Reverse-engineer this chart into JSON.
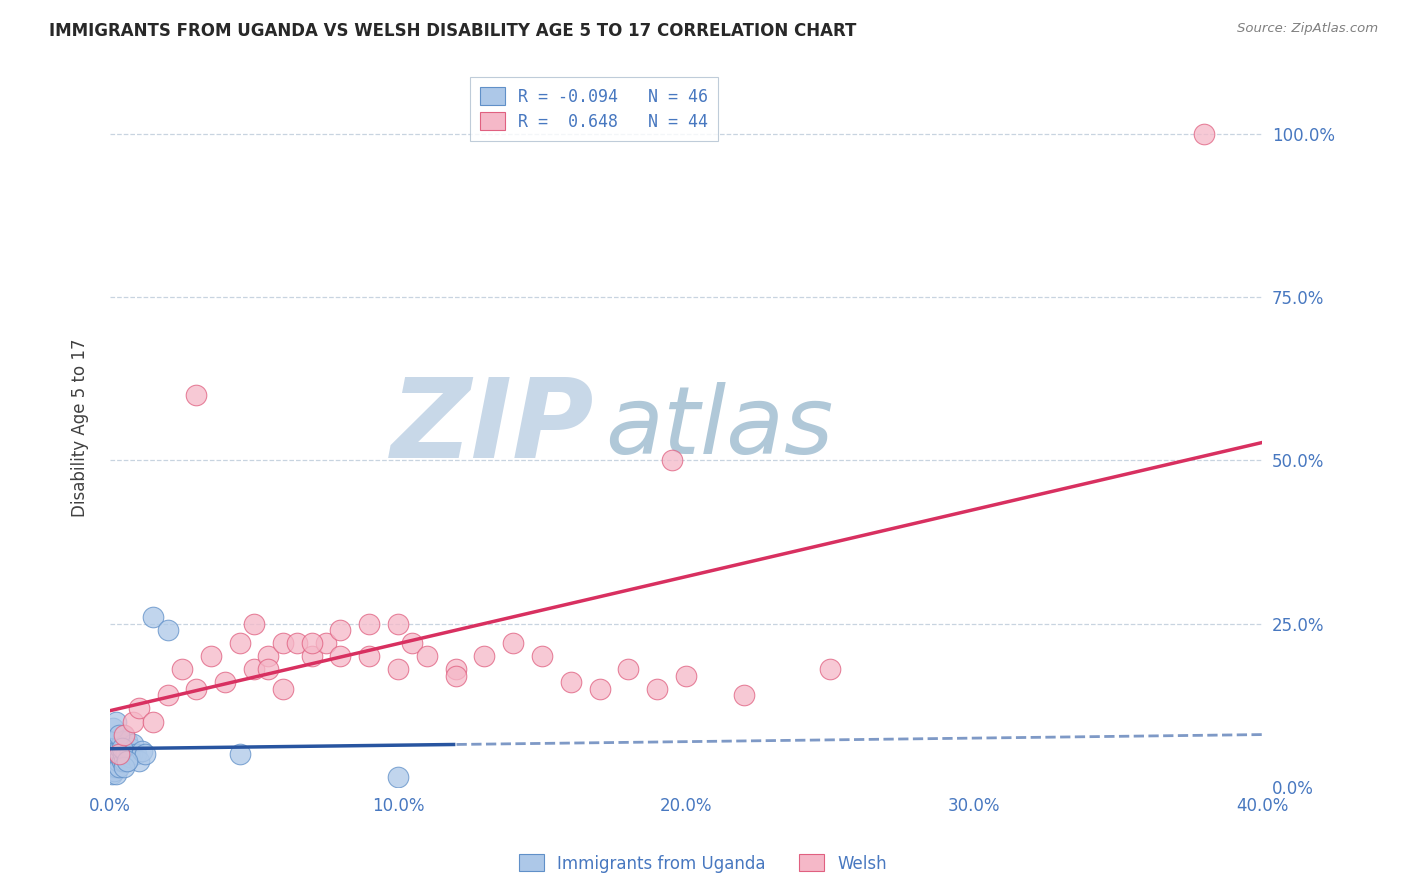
{
  "title": "IMMIGRANTS FROM UGANDA VS WELSH DISABILITY AGE 5 TO 17 CORRELATION CHART",
  "source": "Source: ZipAtlas.com",
  "xlabel_bottom": [
    "0.0%",
    "10.0%",
    "20.0%",
    "30.0%",
    "40.0%"
  ],
  "ylabel_right": [
    "25.0%",
    "50.0%",
    "75.0%",
    "100.0%"
  ],
  "ylabel_label": "Disability Age 5 to 17",
  "xlim": [
    0.0,
    40.0
  ],
  "ylim": [
    0.0,
    110.0
  ],
  "yticks": [
    0,
    25,
    50,
    75,
    100
  ],
  "ytick_labels_right": [
    "0.0%",
    "25.0%",
    "50.0%",
    "75.0%",
    "100.0%"
  ],
  "legend_line1": "R = -0.094   N = 46",
  "legend_line2": "R =  0.648   N = 44",
  "color_blue_fill": "#adc8e8",
  "color_blue_edge": "#6090c8",
  "color_blue_line_solid": "#2855a0",
  "color_pink_fill": "#f5b8c8",
  "color_pink_edge": "#e06080",
  "color_pink_line": "#d83060",
  "color_text_blue": "#4878c0",
  "color_text_title": "#282828",
  "color_source": "#808080",
  "watermark_zip": "#c8d8e8",
  "watermark_atlas": "#b0c8d8",
  "background": "#ffffff",
  "grid_color": "#c8d4e0",
  "blue_points_x": [
    0.05,
    0.08,
    0.1,
    0.12,
    0.15,
    0.15,
    0.18,
    0.2,
    0.2,
    0.22,
    0.25,
    0.25,
    0.28,
    0.3,
    0.3,
    0.3,
    0.35,
    0.35,
    0.4,
    0.4,
    0.45,
    0.45,
    0.5,
    0.5,
    0.55,
    0.6,
    0.6,
    0.65,
    0.7,
    0.7,
    0.75,
    0.8,
    0.9,
    1.0,
    1.1,
    1.2,
    1.5,
    2.0,
    4.5,
    10.0,
    0.1,
    0.2,
    0.3,
    0.4,
    0.5,
    0.6
  ],
  "blue_points_y": [
    2.0,
    3.0,
    4.0,
    2.5,
    3.5,
    5.0,
    4.0,
    3.0,
    6.0,
    2.0,
    5.0,
    7.0,
    4.0,
    3.0,
    5.5,
    7.5,
    4.5,
    6.0,
    4.0,
    7.0,
    5.0,
    8.0,
    4.0,
    6.0,
    5.0,
    4.0,
    7.0,
    5.0,
    4.5,
    6.0,
    5.0,
    6.5,
    5.0,
    4.0,
    5.5,
    5.0,
    26.0,
    24.0,
    5.0,
    1.5,
    9.0,
    10.0,
    8.0,
    6.0,
    3.0,
    4.0
  ],
  "pink_points_x": [
    0.3,
    0.5,
    0.8,
    1.0,
    1.5,
    2.0,
    2.5,
    3.0,
    3.5,
    4.0,
    4.5,
    5.0,
    5.0,
    5.5,
    6.0,
    6.0,
    6.5,
    7.0,
    7.5,
    8.0,
    8.0,
    9.0,
    9.0,
    10.0,
    10.5,
    11.0,
    12.0,
    13.0,
    14.0,
    15.0,
    16.0,
    17.0,
    18.0,
    19.0,
    20.0,
    22.0,
    25.0,
    3.0,
    5.5,
    7.0,
    10.0,
    12.0,
    38.0,
    19.5
  ],
  "pink_points_y": [
    5.0,
    8.0,
    10.0,
    12.0,
    10.0,
    14.0,
    18.0,
    15.0,
    20.0,
    16.0,
    22.0,
    18.0,
    25.0,
    20.0,
    22.0,
    15.0,
    22.0,
    20.0,
    22.0,
    20.0,
    24.0,
    20.0,
    25.0,
    18.0,
    22.0,
    20.0,
    18.0,
    20.0,
    22.0,
    20.0,
    16.0,
    15.0,
    18.0,
    15.0,
    17.0,
    14.0,
    18.0,
    60.0,
    18.0,
    22.0,
    25.0,
    17.0,
    100.0,
    50.0
  ]
}
